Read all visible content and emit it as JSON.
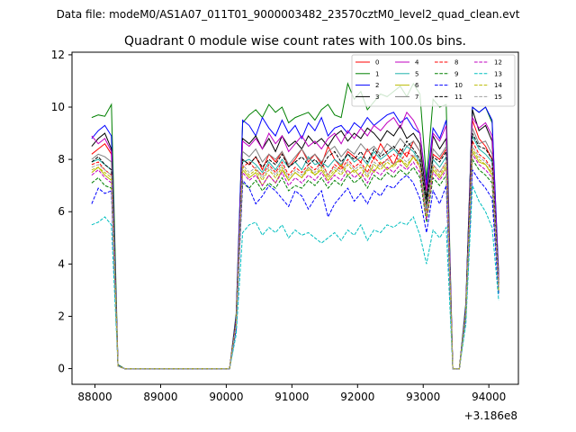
{
  "suptitle": "Data file: modeM0/AS1A07_011T01_9000003482_23570cztM0_level2_quad_clean.evt",
  "chart_data": {
    "type": "line",
    "title": "Quadrant 0 module wise count rates with 100.0s bins.",
    "xlabel": "",
    "ylabel": "",
    "x_offset_text": "+3.186e8",
    "xlim": [
      87650,
      94450
    ],
    "ylim": [
      -0.6,
      12.1
    ],
    "xticks": [
      "88000",
      "89000",
      "90000",
      "91000",
      "92000",
      "93000",
      "94000"
    ],
    "yticks": [
      "0",
      "2",
      "4",
      "6",
      "8",
      "10",
      "12"
    ],
    "grid": false,
    "legend_placement": "top-right",
    "legend_columns": 4,
    "x": [
      87950,
      88050,
      88150,
      88250,
      88350,
      88450,
      88550,
      88650,
      88750,
      88850,
      88950,
      89050,
      89150,
      89250,
      89350,
      89450,
      89550,
      89650,
      89750,
      89850,
      89950,
      90050,
      90150,
      90250,
      90350,
      90450,
      90550,
      90650,
      90750,
      90850,
      90950,
      91050,
      91150,
      91250,
      91350,
      91450,
      91550,
      91650,
      91750,
      91850,
      91950,
      92050,
      92150,
      92250,
      92350,
      92450,
      92550,
      92650,
      92750,
      92850,
      92950,
      93050,
      93150,
      93250,
      93350,
      93450,
      93550,
      93650,
      93750,
      93850,
      93950,
      94050,
      94150
    ],
    "series": [
      {
        "name": "0",
        "color": "#ff0000",
        "dash": "solid",
        "values": [
          8.2,
          8.4,
          8.6,
          8.2,
          0.1,
          0,
          0,
          0,
          0,
          0,
          0,
          0,
          0,
          0,
          0,
          0,
          0,
          0,
          0,
          0,
          0,
          0,
          1.9,
          8.0,
          7.8,
          8.1,
          7.6,
          8.2,
          7.9,
          8.3,
          7.7,
          8.0,
          8.4,
          7.9,
          8.2,
          7.8,
          8.5,
          8.0,
          7.7,
          8.3,
          8.1,
          7.9,
          8.4,
          8.0,
          8.6,
          8.2,
          7.8,
          8.4,
          8.1,
          8.7,
          8.3,
          6.0,
          8.2,
          8.0,
          8.4,
          0,
          0,
          2.3,
          9.5,
          8.8,
          8.5,
          8.0,
          3.4
        ]
      },
      {
        "name": "1",
        "color": "#008000",
        "dash": "solid",
        "values": [
          9.6,
          9.7,
          9.65,
          10.1,
          0.15,
          0,
          0,
          0,
          0,
          0,
          0,
          0,
          0,
          0,
          0,
          0,
          0,
          0,
          0,
          0,
          0,
          0,
          2.1,
          9.4,
          9.7,
          9.9,
          9.6,
          10.1,
          9.8,
          10.0,
          9.4,
          9.6,
          9.7,
          9.8,
          9.5,
          9.9,
          10.1,
          9.7,
          9.6,
          10.9,
          10.3,
          10.6,
          9.9,
          10.2,
          10.5,
          10.4,
          10.6,
          10.8,
          10.4,
          10.9,
          10.5,
          7.2,
          10.3,
          10.0,
          10.1,
          0,
          0,
          2.5,
          10.0,
          9.8,
          10.0,
          9.4,
          3.6
        ]
      },
      {
        "name": "2",
        "color": "#0000ff",
        "dash": "solid",
        "values": [
          8.8,
          9.1,
          9.3,
          8.9,
          0.12,
          0,
          0,
          0,
          0,
          0,
          0,
          0,
          0,
          0,
          0,
          0,
          0,
          0,
          0,
          0,
          0,
          0,
          2.0,
          9.5,
          9.3,
          8.9,
          9.6,
          9.2,
          8.9,
          9.5,
          9.0,
          9.3,
          8.8,
          9.4,
          9.1,
          9.6,
          8.9,
          9.2,
          9.3,
          9.0,
          9.4,
          9.2,
          9.6,
          9.3,
          9.5,
          9.7,
          9.8,
          9.4,
          9.6,
          9.2,
          9.0,
          7.0,
          9.2,
          8.8,
          9.5,
          0,
          0,
          2.4,
          10.0,
          9.8,
          10.0,
          9.5,
          3.5
        ]
      },
      {
        "name": "3",
        "color": "#000000",
        "dash": "solid",
        "values": [
          8.5,
          8.8,
          9.0,
          8.4,
          0.1,
          0,
          0,
          0,
          0,
          0,
          0,
          0,
          0,
          0,
          0,
          0,
          0,
          0,
          0,
          0,
          0,
          0,
          1.9,
          8.8,
          8.6,
          8.9,
          8.4,
          8.8,
          8.3,
          8.9,
          8.5,
          8.7,
          8.4,
          8.9,
          8.6,
          8.8,
          8.5,
          8.9,
          9.1,
          8.7,
          9.0,
          8.8,
          9.2,
          9.0,
          8.7,
          9.1,
          8.9,
          9.3,
          8.8,
          9.0,
          8.6,
          6.5,
          8.9,
          8.4,
          8.8,
          0,
          0,
          2.3,
          9.9,
          9.1,
          9.3,
          8.7,
          3.3
        ]
      },
      {
        "name": "4",
        "color": "#c000c0",
        "dash": "solid",
        "values": [
          8.9,
          8.6,
          8.8,
          8.3,
          0.1,
          0,
          0,
          0,
          0,
          0,
          0,
          0,
          0,
          0,
          0,
          0,
          0,
          0,
          0,
          0,
          0,
          0,
          1.9,
          8.7,
          8.5,
          8.8,
          8.4,
          9.0,
          8.6,
          8.9,
          8.3,
          8.6,
          8.9,
          8.5,
          8.7,
          8.4,
          8.8,
          9.0,
          8.6,
          9.1,
          8.8,
          9.2,
          8.9,
          9.3,
          9.1,
          9.4,
          9.6,
          9.2,
          9.8,
          9.5,
          9.0,
          6.8,
          9.0,
          8.7,
          9.3,
          0,
          0,
          2.3,
          9.6,
          9.2,
          9.4,
          8.9,
          3.4
        ]
      },
      {
        "name": "5",
        "color": "#20b2aa",
        "dash": "solid",
        "values": [
          7.9,
          8.0,
          7.8,
          7.6,
          0.1,
          0,
          0,
          0,
          0,
          0,
          0,
          0,
          0,
          0,
          0,
          0,
          0,
          0,
          0,
          0,
          0,
          0,
          1.8,
          7.9,
          8.0,
          7.8,
          7.5,
          7.9,
          7.6,
          8.0,
          7.7,
          7.9,
          7.6,
          8.1,
          7.8,
          7.9,
          7.7,
          8.0,
          7.8,
          8.2,
          7.9,
          8.1,
          7.8,
          8.3,
          8.0,
          8.2,
          8.4,
          8.1,
          8.5,
          8.3,
          7.9,
          6.1,
          8.0,
          7.7,
          8.1,
          0,
          0,
          2.2,
          8.9,
          8.4,
          8.2,
          7.9,
          3.1
        ]
      },
      {
        "name": "6",
        "color": "#bbbb00",
        "dash": "solid",
        "values": [
          7.5,
          7.7,
          7.4,
          7.2,
          0.1,
          0,
          0,
          0,
          0,
          0,
          0,
          0,
          0,
          0,
          0,
          0,
          0,
          0,
          0,
          0,
          0,
          0,
          1.7,
          7.6,
          7.3,
          7.5,
          7.0,
          7.4,
          7.1,
          7.6,
          7.2,
          7.5,
          7.3,
          7.7,
          7.4,
          7.6,
          7.2,
          7.5,
          7.8,
          7.4,
          7.6,
          7.3,
          7.8,
          7.5,
          7.9,
          7.6,
          7.8,
          8.0,
          7.7,
          8.1,
          7.8,
          5.8,
          7.6,
          7.3,
          7.7,
          0,
          0,
          2.1,
          8.3,
          7.9,
          7.8,
          7.4,
          3.0
        ]
      },
      {
        "name": "7",
        "color": "#808080",
        "dash": "solid",
        "values": [
          8.0,
          8.2,
          8.1,
          7.9,
          0.1,
          0,
          0,
          0,
          0,
          0,
          0,
          0,
          0,
          0,
          0,
          0,
          0,
          0,
          0,
          0,
          0,
          0,
          1.8,
          8.3,
          8.1,
          8.4,
          7.9,
          8.2,
          8.0,
          8.3,
          7.8,
          8.1,
          8.4,
          8.0,
          8.2,
          7.9,
          8.3,
          8.5,
          8.1,
          8.4,
          8.2,
          8.6,
          8.3,
          8.5,
          8.2,
          8.6,
          8.4,
          8.8,
          8.5,
          8.7,
          8.3,
          6.2,
          8.4,
          8.1,
          8.5,
          0,
          0,
          2.2,
          9.2,
          8.6,
          8.7,
          8.2,
          3.2
        ]
      },
      {
        "name": "8",
        "color": "#ff0000",
        "dash": "dashed",
        "values": [
          7.8,
          7.9,
          7.6,
          7.4,
          0.1,
          0,
          0,
          0,
          0,
          0,
          0,
          0,
          0,
          0,
          0,
          0,
          0,
          0,
          0,
          0,
          0,
          0,
          1.8,
          7.7,
          7.9,
          7.6,
          7.4,
          7.8,
          7.5,
          7.9,
          7.4,
          7.7,
          7.5,
          7.8,
          7.6,
          7.9,
          7.4,
          7.8,
          7.6,
          8.0,
          7.7,
          7.9,
          7.5,
          8.1,
          7.8,
          8.0,
          8.2,
          7.9,
          8.3,
          8.1,
          7.7,
          5.9,
          7.8,
          7.5,
          7.9,
          0,
          0,
          2.1,
          8.7,
          8.2,
          8.0,
          7.6,
          3.1
        ]
      },
      {
        "name": "9",
        "color": "#008000",
        "dash": "dashed",
        "values": [
          7.1,
          7.3,
          7.0,
          6.9,
          0.1,
          0,
          0,
          0,
          0,
          0,
          0,
          0,
          0,
          0,
          0,
          0,
          0,
          0,
          0,
          0,
          0,
          0,
          1.6,
          7.1,
          6.9,
          7.2,
          6.8,
          7.1,
          6.9,
          7.3,
          6.8,
          7.0,
          6.9,
          7.2,
          7.0,
          7.3,
          6.9,
          7.2,
          7.0,
          7.4,
          7.1,
          7.3,
          6.9,
          7.4,
          7.2,
          7.5,
          7.3,
          7.6,
          7.4,
          7.7,
          7.3,
          5.6,
          7.3,
          7.0,
          7.4,
          0,
          0,
          2.0,
          8.0,
          7.6,
          7.4,
          7.1,
          2.9
        ]
      },
      {
        "name": "10",
        "color": "#0000ff",
        "dash": "dashed",
        "values": [
          6.3,
          6.9,
          6.7,
          6.8,
          0.1,
          0,
          0,
          0,
          0,
          0,
          0,
          0,
          0,
          0,
          0,
          0,
          0,
          0,
          0,
          0,
          0,
          0,
          1.5,
          7.2,
          6.9,
          6.3,
          6.6,
          7.0,
          6.8,
          6.5,
          6.2,
          6.8,
          6.6,
          6.1,
          6.5,
          6.8,
          5.8,
          6.3,
          6.6,
          6.9,
          6.4,
          6.7,
          6.3,
          6.8,
          6.6,
          7.0,
          6.9,
          7.2,
          7.4,
          7.1,
          6.5,
          5.2,
          6.8,
          6.3,
          7.0,
          0,
          0,
          1.9,
          7.6,
          7.2,
          6.9,
          6.5,
          2.8
        ]
      },
      {
        "name": "11",
        "color": "#000000",
        "dash": "dashed",
        "values": [
          7.9,
          8.1,
          7.8,
          7.6,
          0.1,
          0,
          0,
          0,
          0,
          0,
          0,
          0,
          0,
          0,
          0,
          0,
          0,
          0,
          0,
          0,
          0,
          0,
          1.8,
          8.0,
          7.8,
          8.1,
          7.7,
          8.0,
          7.8,
          8.2,
          7.7,
          7.9,
          8.1,
          7.8,
          8.0,
          7.7,
          8.1,
          8.3,
          7.9,
          8.2,
          8.0,
          8.3,
          7.9,
          8.4,
          8.1,
          8.3,
          8.5,
          8.2,
          8.7,
          8.4,
          8.0,
          6.3,
          8.1,
          7.9,
          8.3,
          0,
          0,
          2.2,
          9.0,
          8.5,
          8.4,
          8.0,
          3.2
        ]
      },
      {
        "name": "12",
        "color": "#c000c0",
        "dash": "dashed",
        "values": [
          7.4,
          7.6,
          7.3,
          7.1,
          0.1,
          0,
          0,
          0,
          0,
          0,
          0,
          0,
          0,
          0,
          0,
          0,
          0,
          0,
          0,
          0,
          0,
          0,
          1.7,
          7.5,
          7.2,
          7.4,
          7.0,
          7.4,
          7.1,
          7.5,
          7.0,
          7.3,
          7.1,
          7.4,
          7.2,
          7.5,
          7.1,
          7.4,
          7.2,
          7.6,
          7.3,
          7.5,
          7.1,
          7.6,
          7.4,
          7.7,
          7.5,
          7.8,
          7.6,
          7.9,
          7.5,
          5.7,
          7.5,
          7.2,
          7.6,
          0,
          0,
          2.0,
          8.2,
          7.8,
          7.6,
          7.3,
          3.0
        ]
      },
      {
        "name": "13",
        "color": "#00bfbf",
        "dash": "dashed",
        "values": [
          5.5,
          5.6,
          5.8,
          5.5,
          0.1,
          0,
          0,
          0,
          0,
          0,
          0,
          0,
          0,
          0,
          0,
          0,
          0,
          0,
          0,
          0,
          0,
          0,
          1.3,
          5.2,
          5.5,
          5.6,
          5.1,
          5.4,
          5.2,
          5.5,
          5.0,
          5.3,
          5.1,
          5.2,
          5.0,
          4.8,
          5.0,
          5.2,
          4.9,
          5.3,
          5.1,
          5.5,
          4.9,
          5.3,
          5.2,
          5.5,
          5.4,
          5.6,
          5.5,
          5.8,
          5.1,
          4.0,
          5.3,
          5.0,
          5.4,
          0,
          0,
          1.7,
          7.0,
          6.4,
          6.0,
          5.4,
          2.6
        ]
      },
      {
        "name": "14",
        "color": "#bbbb00",
        "dash": "dashed",
        "values": [
          7.6,
          7.7,
          7.5,
          7.3,
          0.1,
          0,
          0,
          0,
          0,
          0,
          0,
          0,
          0,
          0,
          0,
          0,
          0,
          0,
          0,
          0,
          0,
          0,
          1.7,
          7.7,
          7.4,
          7.6,
          7.2,
          7.6,
          7.3,
          7.7,
          7.2,
          7.5,
          7.3,
          7.6,
          7.4,
          7.7,
          7.3,
          7.6,
          7.4,
          7.8,
          7.5,
          7.7,
          7.3,
          7.8,
          7.6,
          7.9,
          7.7,
          8.0,
          7.8,
          8.1,
          7.7,
          5.8,
          7.7,
          7.4,
          7.8,
          0,
          0,
          2.1,
          8.4,
          8.0,
          7.8,
          7.5,
          3.0
        ]
      },
      {
        "name": "15",
        "color": "#a0a0a0",
        "dash": "dashed",
        "values": [
          7.7,
          7.8,
          7.6,
          7.4,
          0.1,
          0,
          0,
          0,
          0,
          0,
          0,
          0,
          0,
          0,
          0,
          0,
          0,
          0,
          0,
          0,
          0,
          0,
          1.7,
          7.8,
          7.5,
          7.7,
          7.3,
          7.7,
          7.4,
          7.8,
          7.3,
          7.6,
          7.4,
          7.7,
          7.5,
          7.8,
          7.4,
          7.7,
          7.5,
          7.9,
          7.6,
          7.8,
          7.4,
          7.9,
          7.7,
          8.0,
          7.8,
          8.1,
          7.9,
          8.2,
          7.8,
          5.9,
          7.8,
          7.5,
          7.9,
          0,
          0,
          2.1,
          8.5,
          8.1,
          7.9,
          7.6,
          3.1
        ]
      }
    ]
  }
}
